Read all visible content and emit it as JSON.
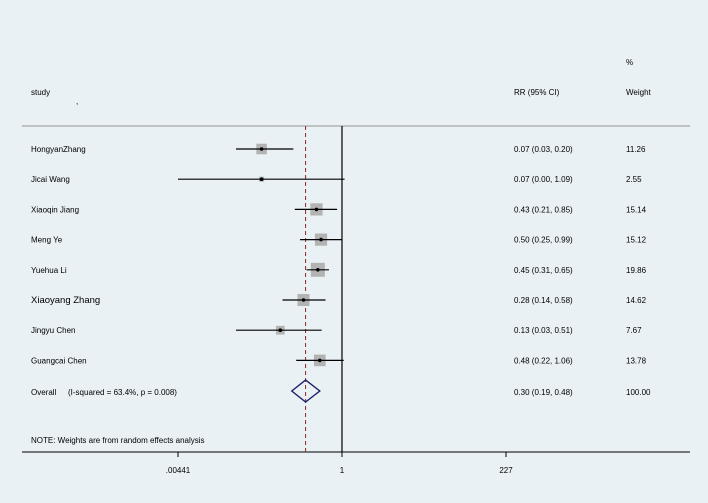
{
  "header": {
    "study_label": "study",
    "study_sub": ",",
    "rr_label": "RR (95% CI)",
    "weight_pct": "%",
    "weight_label": "Weight"
  },
  "note": "NOTE: Weights are from random effects analysis",
  "colors": {
    "background": "#e9f1f4",
    "box": "#b3b3b3",
    "diamond": "#1c1f6b",
    "overall_line": "#8b2525",
    "line": "#000000"
  },
  "chart_data": {
    "type": "forest",
    "x_scale": "log",
    "x_ticks": [
      {
        "value": 0.00441,
        "label": ".00441"
      },
      {
        "value": 1,
        "label": "1"
      },
      {
        "value": 227,
        "label": "227"
      }
    ],
    "x_range": [
      0.00441,
      227
    ],
    "reference_line": 1,
    "studies": [
      {
        "name": "HongyanZhang",
        "rr": 0.07,
        "lo": 0.03,
        "hi": 0.2,
        "ci_text": "0.07 (0.03, 0.20)",
        "weight": 11.26,
        "weight_text": "11.26"
      },
      {
        "name": "Jicai Wang",
        "rr": 0.07,
        "lo": 0.0,
        "hi": 1.09,
        "ci_text": "0.07 (0.00, 1.09)",
        "weight": 2.55,
        "weight_text": "2.55"
      },
      {
        "name": "Xiaoqin Jiang",
        "rr": 0.43,
        "lo": 0.21,
        "hi": 0.85,
        "ci_text": "0.43 (0.21, 0.85)",
        "weight": 15.14,
        "weight_text": "15.14"
      },
      {
        "name": "Meng Ye",
        "rr": 0.5,
        "lo": 0.25,
        "hi": 0.99,
        "ci_text": "0.50 (0.25, 0.99)",
        "weight": 15.12,
        "weight_text": "15.12"
      },
      {
        "name": "Yuehua Li",
        "rr": 0.45,
        "lo": 0.31,
        "hi": 0.65,
        "ci_text": "0.45 (0.31, 0.65)",
        "weight": 19.86,
        "weight_text": "19.86"
      },
      {
        "name": "Xiaoyang Zhang",
        "rr": 0.28,
        "lo": 0.14,
        "hi": 0.58,
        "ci_text": "0.28 (0.14, 0.58)",
        "weight": 14.62,
        "weight_text": "14.62"
      },
      {
        "name": "Jingyu Chen",
        "rr": 0.13,
        "lo": 0.03,
        "hi": 0.51,
        "ci_text": "0.13 (0.03, 0.51)",
        "weight": 7.67,
        "weight_text": "7.67"
      },
      {
        "name": "Guangcai Chen",
        "rr": 0.48,
        "lo": 0.22,
        "hi": 1.06,
        "ci_text": "0.48 (0.22, 1.06)",
        "weight": 13.78,
        "weight_text": "13.78"
      }
    ],
    "overall": {
      "label": "Overall",
      "stats": "(I-squared = 63.4%, p = 0.008)",
      "rr": 0.3,
      "lo": 0.19,
      "hi": 0.48,
      "ci_text": "0.30 (0.19, 0.48)",
      "weight_text": "100.00"
    }
  }
}
